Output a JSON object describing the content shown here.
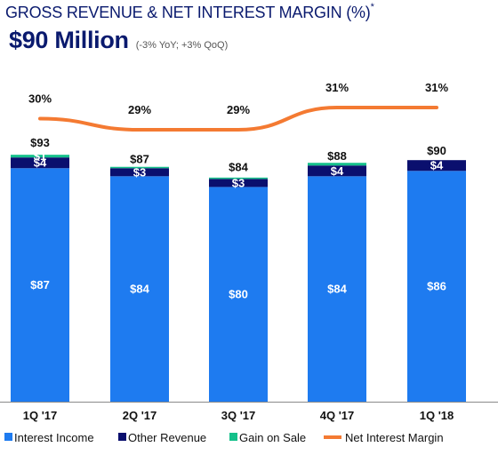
{
  "header": {
    "title": "GROSS REVENUE & NET INTEREST MARGIN (%)",
    "title_marker": "*",
    "headline": "$90 Million",
    "headline_note": "(-3% YoY; +3% QoQ)"
  },
  "colors": {
    "interest_income": "#1e7bf0",
    "other_revenue": "#0a0f6e",
    "gain_on_sale": "#14c08a",
    "nim_line": "#f47a32",
    "text_dark": "#0a1a6e"
  },
  "chart_data": {
    "type": "bar",
    "stacked": true,
    "categories": [
      "1Q '17",
      "2Q '17",
      "3Q '17",
      "4Q '17",
      "1Q '18"
    ],
    "series": [
      {
        "name": "Interest Income",
        "values": [
          87,
          84,
          80,
          84,
          86
        ],
        "labels": [
          "$87",
          "$84",
          "$80",
          "$84",
          "$86"
        ]
      },
      {
        "name": "Other Revenue",
        "values": [
          4,
          3,
          3,
          4,
          4
        ],
        "labels": [
          "$4",
          "$3",
          "$3",
          "$4",
          "$4"
        ]
      },
      {
        "name": "Gain on Sale",
        "values": [
          1,
          0.5,
          0.5,
          1,
          0
        ],
        "labels": [
          "$1",
          "",
          "",
          "",
          ""
        ]
      }
    ],
    "totals": [
      "$93",
      "$87",
      "$84",
      "$88",
      "$90"
    ],
    "total_values": [
      93,
      87,
      84,
      88,
      90
    ],
    "line_series": {
      "name": "Net Interest Margin",
      "values": [
        30,
        29,
        29,
        31,
        31
      ],
      "labels": [
        "30%",
        "29%",
        "29%",
        "31%",
        "31%"
      ]
    },
    "ylim": [
      0,
      100
    ],
    "legend_position": "bottom"
  }
}
